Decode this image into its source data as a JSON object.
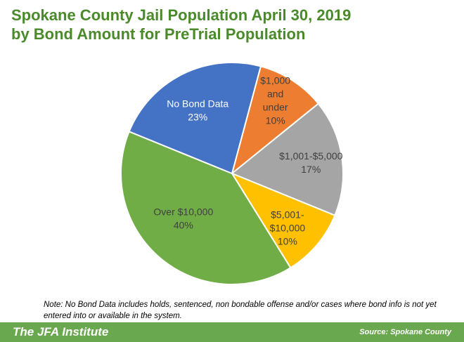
{
  "header": {
    "title_line1": "Spokane County Jail Population April 30, 2019",
    "title_line2": "by Bond Amount for PreTrial Population"
  },
  "chart_data": {
    "type": "pie",
    "title": "Spokane County Jail Population April 30, 2019 by Bond Amount for PreTrial Population",
    "slices": [
      {
        "label": "$1,000 and under",
        "value": 10,
        "percent_label": "10%",
        "color": "#ed7d31",
        "label_lines": [
          "$1,000",
          "and",
          "under",
          "10%"
        ]
      },
      {
        "label": "$1,001-$5,000",
        "value": 17,
        "percent_label": "17%",
        "color": "#a5a5a5",
        "label_lines": [
          "$1,001-$5,000",
          "17%"
        ]
      },
      {
        "label": "$5,001-$10,000",
        "value": 10,
        "percent_label": "10%",
        "color": "#ffc000",
        "label_lines": [
          "$5,001-",
          "$10,000",
          "10%"
        ]
      },
      {
        "label": "Over $10,000",
        "value": 40,
        "percent_label": "40%",
        "color": "#70ad47",
        "label_lines": [
          "Over $10,000",
          "40%"
        ]
      },
      {
        "label": "No Bond Data",
        "value": 23,
        "percent_label": "23%",
        "color": "#4472c4",
        "label_lines": [
          "No Bond Data",
          "23%"
        ]
      }
    ],
    "label_colors": {
      "$1,000 and under": "#404040",
      "$1,001-$5,000": "#404040",
      "$5,001-$10,000": "#404040",
      "Over $10,000": "#404040",
      "No Bond Data": "#ffffff"
    }
  },
  "note": "Note: No Bond Data includes holds, sentenced, non bondable offense and/or cases where bond info is not yet entered into or available in the system.",
  "footer": {
    "brand": "The JFA Institute",
    "source": "Source: Spokane County"
  }
}
